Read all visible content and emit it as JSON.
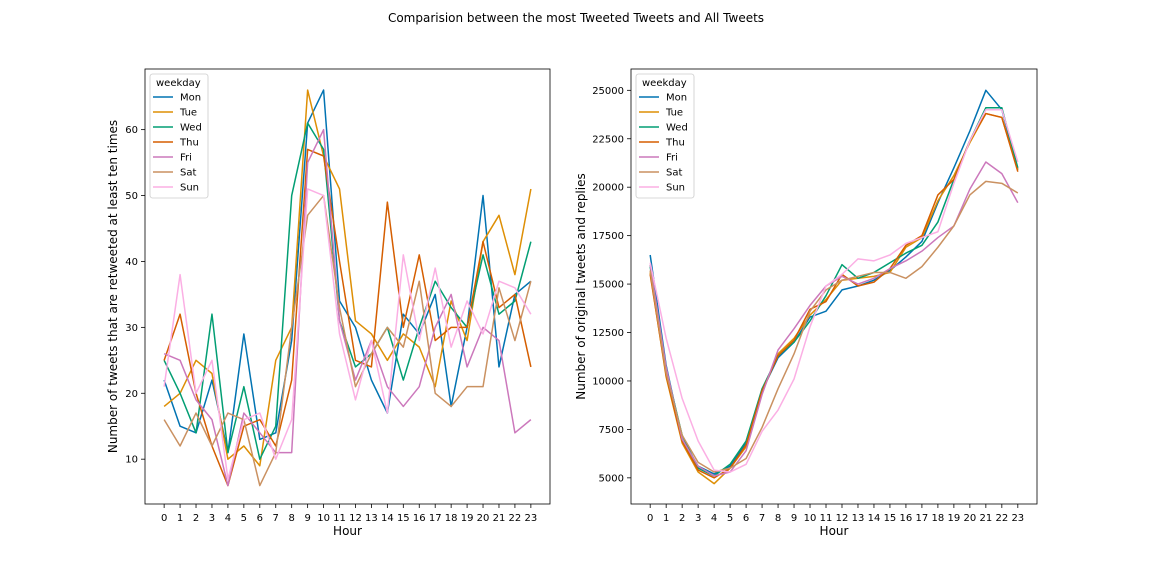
{
  "suptitle": "Comparision between the most Tweeted Tweets and All Tweets",
  "colors": {
    "Mon": "#0173b2",
    "Tue": "#de8f05",
    "Wed": "#029e73",
    "Thu": "#d55e00",
    "Fri": "#cc78bc",
    "Sat": "#ca9161",
    "Sun": "#fbafe4"
  },
  "chart_data": [
    {
      "type": "line",
      "title": "",
      "xlabel": "Hour",
      "ylabel": "Number of tweets that are retweeted at least ten times",
      "x": [
        0,
        1,
        2,
        3,
        4,
        5,
        6,
        7,
        8,
        9,
        10,
        11,
        12,
        13,
        14,
        15,
        16,
        17,
        18,
        19,
        20,
        21,
        22,
        23
      ],
      "xlim": [
        -1.2,
        24.2
      ],
      "ylim": [
        3.2,
        69.2
      ],
      "yticks": [
        10,
        20,
        30,
        40,
        50,
        60
      ],
      "grid": false,
      "legend": {
        "title": "weekday",
        "loc": "upper left"
      },
      "series": [
        {
          "name": "Mon",
          "values": [
            22,
            15,
            14,
            22,
            11,
            29,
            13,
            14,
            28,
            61,
            66,
            34,
            30,
            22,
            17,
            32,
            29,
            35,
            18,
            30,
            50,
            24,
            35,
            37
          ]
        },
        {
          "name": "Tue",
          "values": [
            18,
            20,
            25,
            23,
            10,
            12,
            9,
            25,
            30,
            66,
            56,
            51,
            31,
            29,
            25,
            29,
            27,
            21,
            34,
            28,
            43,
            47,
            38,
            51
          ]
        },
        {
          "name": "Wed",
          "values": [
            25,
            20,
            14,
            32,
            11,
            21,
            10,
            15,
            50,
            61,
            57,
            31,
            24,
            26,
            30,
            22,
            30,
            37,
            33,
            30,
            41,
            32,
            34,
            43
          ]
        },
        {
          "name": "Thu",
          "values": [
            25,
            32,
            20,
            12,
            6,
            15,
            16,
            12,
            22,
            57,
            56,
            40,
            25,
            24,
            49,
            30,
            41,
            28,
            30,
            30,
            43,
            33,
            35,
            24
          ]
        },
        {
          "name": "Fri",
          "values": [
            26,
            25,
            19,
            16,
            6,
            17,
            14,
            11,
            11,
            55,
            60,
            31,
            22,
            28,
            21,
            18,
            21,
            30,
            35,
            24,
            30,
            28,
            14,
            16
          ]
        },
        {
          "name": "Sat",
          "values": [
            16,
            12,
            17,
            12,
            17,
            16,
            6,
            11,
            30,
            47,
            50,
            33,
            21,
            26,
            30,
            27,
            37,
            20,
            18,
            21,
            21,
            36,
            28,
            37
          ]
        },
        {
          "name": "Sun",
          "values": [
            21,
            38,
            20,
            25,
            7,
            16,
            17,
            10,
            16,
            51,
            50,
            29,
            19,
            28,
            17,
            41,
            28,
            39,
            27,
            34,
            29,
            37,
            36,
            32
          ]
        }
      ]
    },
    {
      "type": "line",
      "title": "",
      "xlabel": "Hour",
      "ylabel": "Number of original tweets and replies",
      "x": [
        0,
        1,
        2,
        3,
        4,
        5,
        6,
        7,
        8,
        9,
        10,
        11,
        12,
        13,
        14,
        15,
        16,
        17,
        18,
        19,
        20,
        21,
        22,
        23
      ],
      "xlim": [
        -1.2,
        24.2
      ],
      "ylim": [
        3650,
        26100
      ],
      "yticks": [
        5000,
        7500,
        10000,
        12500,
        15000,
        17500,
        20000,
        22500,
        25000
      ],
      "grid": false,
      "legend": {
        "title": "weekday",
        "loc": "upper left"
      },
      "series": [
        {
          "name": "Mon",
          "values": [
            16500,
            10800,
            7000,
            5600,
            5200,
            5600,
            6800,
            9500,
            11200,
            12000,
            13300,
            13600,
            14700,
            14900,
            15200,
            15700,
            16400,
            17200,
            19200,
            21000,
            22900,
            25000,
            24000,
            20900
          ]
        },
        {
          "name": "Tue",
          "values": [
            15600,
            10200,
            6800,
            5300,
            4700,
            5500,
            6600,
            9400,
            11400,
            12200,
            13400,
            14200,
            15200,
            15300,
            15400,
            15600,
            16900,
            17400,
            19300,
            20600,
            22300,
            23800,
            23600,
            20900
          ]
        },
        {
          "name": "Wed",
          "values": [
            15900,
            10600,
            7200,
            5500,
            5100,
            5700,
            6900,
            9600,
            11300,
            12000,
            13100,
            14400,
            16000,
            15300,
            15600,
            16100,
            16600,
            17000,
            18200,
            20400,
            22400,
            24100,
            24100,
            21000
          ]
        },
        {
          "name": "Thu",
          "values": [
            15500,
            10300,
            6900,
            5400,
            5000,
            5500,
            6700,
            9500,
            11300,
            12100,
            13700,
            14100,
            15500,
            14900,
            15100,
            15800,
            17000,
            17500,
            19600,
            20400,
            22400,
            23800,
            23600,
            20800
          ]
        },
        {
          "name": "Fri",
          "values": [
            16000,
            10700,
            7000,
            5600,
            5100,
            5300,
            6400,
            9300,
            11600,
            12700,
            13900,
            14900,
            15400,
            15000,
            15300,
            15800,
            16200,
            16700,
            17400,
            18000,
            19900,
            21300,
            20700,
            19200
          ]
        },
        {
          "name": "Sat",
          "values": [
            15700,
            10400,
            7200,
            5800,
            5300,
            5500,
            6000,
            7600,
            9600,
            11400,
            13600,
            14700,
            15200,
            15400,
            15600,
            15600,
            15300,
            15900,
            16900,
            18000,
            19600,
            20300,
            20200,
            19700
          ]
        },
        {
          "name": "Sun",
          "values": [
            16100,
            12200,
            9100,
            6900,
            5400,
            5300,
            5700,
            7400,
            8500,
            10100,
            12800,
            14900,
            15500,
            16300,
            16200,
            16500,
            17100,
            17400,
            17700,
            20200,
            22400,
            24000,
            24000,
            21300
          ]
        }
      ]
    }
  ]
}
